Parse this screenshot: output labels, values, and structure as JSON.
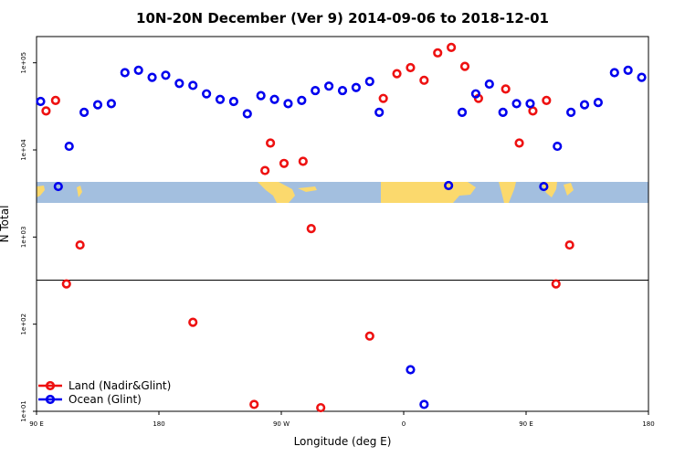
{
  "chart_data": {
    "type": "scatter",
    "title": "10N-20N December (Ver 9)   2014-09-06 to 2018-12-01",
    "xlabel": "Longitude (deg E)",
    "ylabel": "N Total",
    "x_ticks": [
      {
        "value": 90,
        "label": "90 E"
      },
      {
        "value": 180,
        "label": "180"
      },
      {
        "value": 270,
        "label": "90 W"
      },
      {
        "value": 360,
        "label": "0"
      },
      {
        "value": 450,
        "label": "90 E"
      },
      {
        "value": 540,
        "label": "180"
      }
    ],
    "xlim": [
      90,
      540
    ],
    "y_scale": "log",
    "ylim": [
      10,
      200000
    ],
    "y_ticks": [
      {
        "value": 10,
        "label": "1e+01"
      },
      {
        "value": 100,
        "label": "1e+02"
      },
      {
        "value": 1000,
        "label": "1e+03"
      },
      {
        "value": 10000,
        "label": "1e+04"
      },
      {
        "value": 100000,
        "label": "1e+05"
      }
    ],
    "reference_line_y": 320,
    "legend_position": "bottom-left",
    "series": [
      {
        "name": "Land (Nadir&Glint)",
        "color": "#ee1111",
        "points": [
          [
            97,
            28000
          ],
          [
            104,
            37000
          ],
          [
            112,
            290
          ],
          [
            122,
            810
          ],
          [
            205,
            105
          ],
          [
            250,
            12
          ],
          [
            258,
            5800
          ],
          [
            262,
            12000
          ],
          [
            272,
            7000
          ],
          [
            286,
            7400
          ],
          [
            292,
            1250
          ],
          [
            299,
            11
          ],
          [
            335,
            73
          ],
          [
            345,
            39000
          ],
          [
            355,
            75000
          ],
          [
            365,
            88000
          ],
          [
            375,
            63000
          ],
          [
            385,
            130000
          ],
          [
            395,
            150000
          ],
          [
            405,
            91000
          ],
          [
            415,
            39000
          ],
          [
            435,
            50000
          ],
          [
            445,
            12000
          ],
          [
            455,
            28000
          ],
          [
            465,
            37000
          ],
          [
            472,
            290
          ],
          [
            482,
            810
          ]
        ]
      },
      {
        "name": "Ocean (Glint)",
        "color": "#0000ee",
        "points": [
          [
            93,
            36000
          ],
          [
            106,
            3800
          ],
          [
            114,
            11000
          ],
          [
            125,
            27000
          ],
          [
            135,
            33000
          ],
          [
            145,
            34000
          ],
          [
            155,
            77000
          ],
          [
            165,
            82000
          ],
          [
            175,
            68000
          ],
          [
            185,
            72000
          ],
          [
            195,
            58000
          ],
          [
            205,
            55000
          ],
          [
            215,
            44000
          ],
          [
            225,
            38000
          ],
          [
            235,
            36000
          ],
          [
            245,
            26000
          ],
          [
            255,
            42000
          ],
          [
            265,
            38000
          ],
          [
            275,
            34000
          ],
          [
            285,
            37000
          ],
          [
            295,
            48000
          ],
          [
            305,
            54000
          ],
          [
            315,
            48000
          ],
          [
            325,
            52000
          ],
          [
            335,
            61000
          ],
          [
            342,
            27000
          ],
          [
            365,
            30
          ],
          [
            375,
            12
          ],
          [
            393,
            3900
          ],
          [
            403,
            27000
          ],
          [
            413,
            44000
          ],
          [
            423,
            57000
          ],
          [
            433,
            27000
          ],
          [
            443,
            34000
          ],
          [
            453,
            34000
          ],
          [
            463,
            3800
          ],
          [
            473,
            11000
          ],
          [
            483,
            27000
          ],
          [
            493,
            33000
          ],
          [
            503,
            35000
          ],
          [
            515,
            77000
          ],
          [
            525,
            82000
          ],
          [
            535,
            68000
          ]
        ]
      }
    ]
  }
}
